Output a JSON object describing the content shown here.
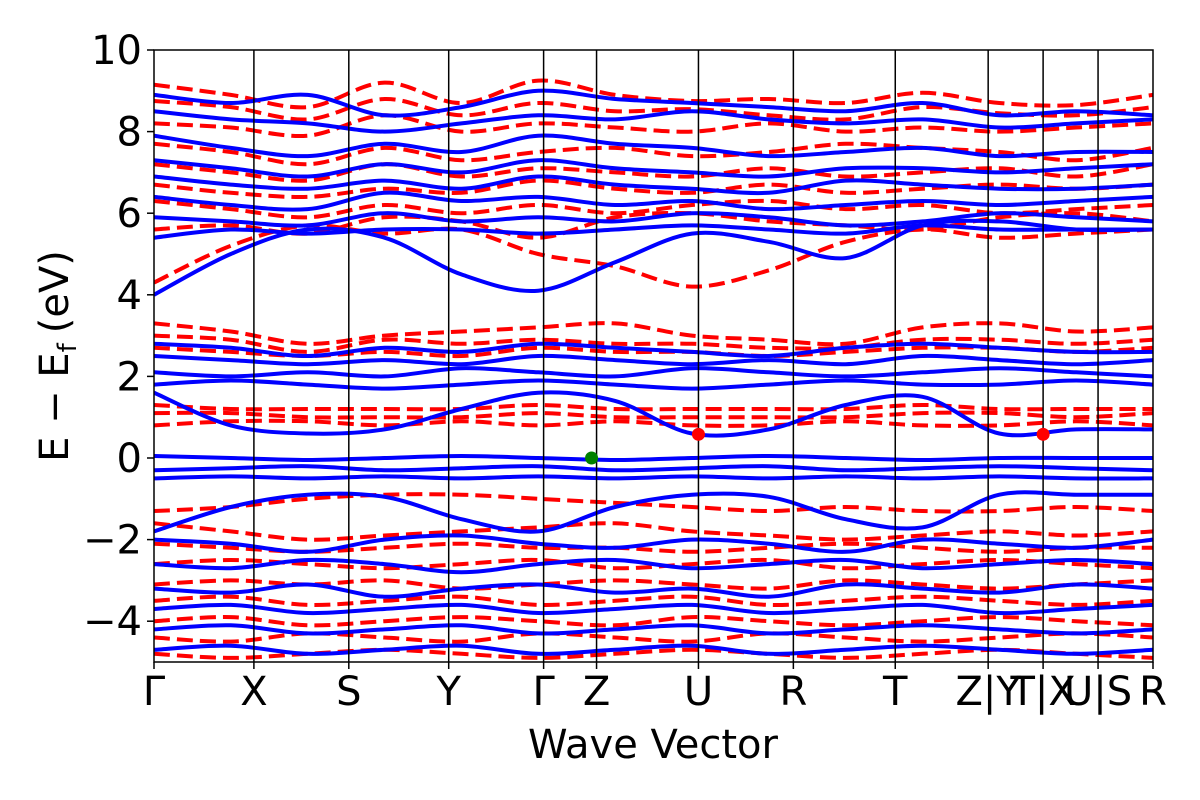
{
  "chart_data": {
    "type": "line",
    "title": "",
    "xlabel": "Wave Vector",
    "ylabel_main": "E − E",
    "ylabel_sub": "f",
    "ylabel_unit": "(eV)",
    "ylim": [
      -5,
      10
    ],
    "yticks": [
      -4,
      -2,
      0,
      2,
      4,
      6,
      8,
      10
    ],
    "ytick_labels": [
      "−4",
      "−2",
      "0",
      "2",
      "4",
      "6",
      "8",
      "10"
    ],
    "xlim": [
      0,
      10
    ],
    "kpoints": [
      {
        "label": "Γ",
        "x": 0.0
      },
      {
        "label": "X",
        "x": 1.0
      },
      {
        "label": "S",
        "x": 1.95
      },
      {
        "label": "Y",
        "x": 2.95
      },
      {
        "label": "Γ",
        "x": 3.9
      },
      {
        "label": "Z",
        "x": 4.43
      },
      {
        "label": "U",
        "x": 5.45
      },
      {
        "label": "R",
        "x": 6.4
      },
      {
        "label": "T",
        "x": 7.42
      },
      {
        "label": "Z|Y",
        "x": 8.35
      },
      {
        "label": "T|X",
        "x": 8.9
      },
      {
        "label": "U|S",
        "x": 9.45
      },
      {
        "label": "R",
        "x": 10.0
      }
    ],
    "grid": false,
    "legend": "none",
    "series": [
      {
        "style": "dashed",
        "color": "#ff0000"
      },
      {
        "style": "solid",
        "color": "#0000ff"
      }
    ],
    "markers": [
      {
        "x": 4.38,
        "y": 0.0,
        "color": "#008000"
      },
      {
        "x": 5.45,
        "y": 0.58,
        "color": "#ff0000"
      },
      {
        "x": 8.9,
        "y": 0.58,
        "color": "#ff0000"
      }
    ],
    "dashed_bands": [
      [
        9.15,
        8.9,
        8.6,
        9.2,
        8.7,
        9.25,
        8.9,
        8.75,
        8.8,
        8.7,
        8.95,
        8.7,
        8.65,
        8.9
      ],
      [
        8.75,
        8.6,
        8.3,
        8.8,
        8.4,
        8.7,
        8.5,
        8.55,
        8.4,
        8.3,
        8.6,
        8.45,
        8.4,
        8.6
      ],
      [
        8.2,
        8.1,
        7.9,
        8.4,
        8.0,
        8.2,
        8.1,
        8.0,
        8.2,
        8.0,
        8.1,
        8.0,
        8.1,
        8.2
      ],
      [
        7.7,
        7.5,
        7.2,
        7.6,
        7.3,
        7.5,
        7.6,
        7.4,
        7.5,
        7.7,
        7.6,
        7.5,
        7.3,
        7.6
      ],
      [
        7.2,
        7.0,
        6.8,
        7.2,
        6.9,
        7.1,
        7.0,
        6.9,
        7.1,
        6.9,
        7.0,
        7.1,
        6.9,
        7.2
      ],
      [
        6.7,
        6.5,
        6.4,
        6.6,
        6.5,
        6.8,
        6.6,
        6.5,
        6.7,
        6.5,
        6.6,
        6.7,
        6.6,
        6.7
      ],
      [
        6.3,
        6.1,
        5.9,
        6.2,
        6.0,
        6.2,
        6.0,
        6.2,
        6.3,
        6.1,
        6.2,
        6.0,
        6.1,
        6.2
      ],
      [
        5.6,
        5.7,
        5.5,
        5.9,
        5.8,
        5.4,
        5.9,
        6.0,
        5.8,
        5.7,
        5.6,
        5.9,
        6.0,
        5.8
      ],
      [
        4.3,
        5.2,
        5.7,
        5.5,
        5.6,
        5.0,
        4.7,
        4.2,
        4.6,
        5.3,
        5.6,
        5.4,
        5.5,
        5.6
      ],
      [
        3.3,
        3.1,
        2.8,
        3.0,
        3.1,
        3.2,
        3.3,
        3.0,
        2.9,
        2.8,
        3.2,
        3.3,
        3.1,
        3.2
      ],
      [
        3.0,
        2.9,
        2.6,
        2.9,
        2.8,
        2.9,
        2.8,
        2.8,
        2.7,
        2.7,
        2.9,
        2.9,
        2.8,
        2.9
      ],
      [
        2.7,
        2.6,
        2.5,
        2.6,
        2.5,
        2.7,
        2.6,
        2.6,
        2.5,
        2.6,
        2.7,
        2.7,
        2.6,
        2.7
      ],
      [
        1.3,
        1.2,
        1.2,
        1.2,
        1.2,
        1.3,
        1.2,
        1.2,
        1.2,
        1.2,
        1.3,
        1.2,
        1.2,
        1.2
      ],
      [
        1.1,
        1.1,
        1.0,
        1.0,
        1.0,
        1.1,
        1.0,
        1.0,
        1.0,
        1.0,
        1.1,
        1.1,
        1.0,
        1.1
      ],
      [
        0.8,
        0.9,
        0.9,
        0.8,
        0.9,
        0.8,
        0.9,
        0.8,
        0.8,
        0.9,
        0.8,
        0.8,
        0.9,
        0.8
      ],
      [
        -1.3,
        -1.2,
        -1.0,
        -0.9,
        -0.9,
        -1.0,
        -1.1,
        -1.2,
        -1.3,
        -1.2,
        -1.3,
        -1.3,
        -1.2,
        -1.3
      ],
      [
        -1.6,
        -1.8,
        -2.0,
        -1.9,
        -1.8,
        -1.7,
        -1.6,
        -1.8,
        -1.9,
        -2.0,
        -1.9,
        -1.8,
        -1.9,
        -1.8
      ],
      [
        -2.1,
        -2.2,
        -2.3,
        -2.2,
        -2.1,
        -2.2,
        -2.2,
        -2.3,
        -2.2,
        -2.1,
        -2.2,
        -2.3,
        -2.2,
        -2.2
      ],
      [
        -2.6,
        -2.5,
        -2.6,
        -2.7,
        -2.6,
        -2.5,
        -2.7,
        -2.6,
        -2.5,
        -2.7,
        -2.6,
        -2.5,
        -2.6,
        -2.7
      ],
      [
        -3.1,
        -3.0,
        -3.1,
        -3.0,
        -3.2,
        -3.1,
        -3.0,
        -3.1,
        -3.2,
        -3.0,
        -3.1,
        -3.2,
        -3.1,
        -3.0
      ],
      [
        -3.5,
        -3.4,
        -3.6,
        -3.5,
        -3.4,
        -3.6,
        -3.5,
        -3.4,
        -3.6,
        -3.5,
        -3.4,
        -3.5,
        -3.6,
        -3.5
      ],
      [
        -4.0,
        -3.9,
        -4.1,
        -4.0,
        -3.9,
        -4.0,
        -4.1,
        -3.9,
        -4.0,
        -4.1,
        -4.0,
        -3.9,
        -4.0,
        -4.1
      ],
      [
        -4.4,
        -4.5,
        -4.3,
        -4.4,
        -4.5,
        -4.3,
        -4.4,
        -4.5,
        -4.3,
        -4.4,
        -4.5,
        -4.4,
        -4.3,
        -4.4
      ],
      [
        -4.8,
        -4.9,
        -4.8,
        -4.7,
        -4.8,
        -4.9,
        -4.8,
        -4.7,
        -4.8,
        -4.9,
        -4.8,
        -4.7,
        -4.8,
        -4.9
      ]
    ],
    "solid_bands": [
      [
        8.9,
        8.7,
        8.9,
        8.4,
        8.6,
        9.0,
        8.8,
        8.7,
        8.6,
        8.5,
        8.7,
        8.4,
        8.5,
        8.4
      ],
      [
        8.5,
        8.3,
        8.2,
        8.0,
        8.2,
        8.4,
        8.3,
        8.5,
        8.3,
        8.2,
        8.3,
        8.1,
        8.2,
        8.3
      ],
      [
        7.9,
        7.6,
        7.4,
        7.7,
        7.5,
        7.9,
        7.7,
        7.6,
        7.4,
        7.5,
        7.6,
        7.4,
        7.5,
        7.5
      ],
      [
        7.3,
        7.1,
        6.9,
        7.2,
        7.0,
        7.3,
        7.1,
        7.0,
        6.9,
        7.1,
        7.1,
        7.0,
        7.1,
        7.2
      ],
      [
        6.9,
        6.7,
        6.6,
        6.8,
        6.6,
        6.9,
        6.7,
        6.6,
        6.5,
        6.8,
        6.7,
        6.6,
        6.6,
        6.7
      ],
      [
        6.4,
        6.2,
        6.1,
        6.5,
        6.3,
        6.4,
        6.2,
        6.3,
        6.1,
        6.2,
        6.3,
        6.2,
        6.3,
        6.4
      ],
      [
        5.9,
        5.8,
        5.7,
        6.0,
        5.8,
        5.9,
        5.8,
        6.0,
        5.9,
        5.7,
        5.8,
        6.0,
        5.9,
        5.8
      ],
      [
        5.4,
        5.6,
        5.5,
        5.6,
        5.6,
        5.5,
        5.6,
        5.7,
        5.6,
        5.5,
        5.7,
        5.6,
        5.6,
        5.6
      ],
      [
        4.0,
        5.0,
        5.6,
        5.4,
        4.5,
        4.1,
        4.8,
        5.5,
        5.3,
        4.9,
        5.7,
        5.8,
        5.6,
        5.6
      ],
      [
        2.8,
        2.7,
        2.5,
        2.7,
        2.6,
        2.8,
        2.7,
        2.6,
        2.5,
        2.7,
        2.8,
        2.7,
        2.6,
        2.6
      ],
      [
        2.5,
        2.4,
        2.3,
        2.4,
        2.3,
        2.5,
        2.4,
        2.3,
        2.4,
        2.3,
        2.5,
        2.4,
        2.3,
        2.4
      ],
      [
        2.1,
        2.0,
        2.1,
        2.0,
        2.2,
        2.1,
        2.0,
        2.2,
        2.1,
        2.0,
        2.1,
        2.2,
        2.1,
        2.0
      ],
      [
        1.8,
        1.9,
        1.8,
        1.7,
        1.8,
        1.9,
        1.8,
        1.7,
        1.8,
        1.9,
        1.8,
        1.8,
        1.9,
        1.8
      ],
      [
        1.6,
        0.8,
        0.6,
        0.7,
        1.2,
        1.6,
        1.4,
        0.6,
        0.7,
        1.3,
        1.5,
        0.6,
        0.7,
        0.7
      ],
      [
        0.05,
        0.0,
        -0.05,
        0.0,
        0.05,
        0.0,
        -0.05,
        0.0,
        0.05,
        0.0,
        -0.05,
        0.0,
        0.0,
        0.0
      ],
      [
        -0.3,
        -0.25,
        -0.2,
        -0.3,
        -0.25,
        -0.2,
        -0.3,
        -0.25,
        -0.2,
        -0.3,
        -0.25,
        -0.2,
        -0.25,
        -0.3
      ],
      [
        -0.5,
        -0.45,
        -0.5,
        -0.45,
        -0.5,
        -0.45,
        -0.5,
        -0.45,
        -0.5,
        -0.45,
        -0.5,
        -0.45,
        -0.5,
        -0.5
      ],
      [
        -1.8,
        -1.2,
        -0.9,
        -0.95,
        -1.5,
        -1.8,
        -1.2,
        -0.9,
        -0.95,
        -1.5,
        -1.7,
        -0.9,
        -0.9,
        -0.9
      ],
      [
        -2.0,
        -2.1,
        -2.3,
        -2.0,
        -1.9,
        -2.1,
        -2.2,
        -2.0,
        -2.1,
        -2.3,
        -2.0,
        -2.1,
        -2.2,
        -2.0
      ],
      [
        -2.6,
        -2.7,
        -2.5,
        -2.6,
        -2.8,
        -2.6,
        -2.5,
        -2.7,
        -2.6,
        -2.5,
        -2.7,
        -2.6,
        -2.5,
        -2.6
      ],
      [
        -3.2,
        -3.3,
        -3.1,
        -3.4,
        -3.2,
        -3.1,
        -3.3,
        -3.2,
        -3.4,
        -3.1,
        -3.2,
        -3.3,
        -3.1,
        -3.2
      ],
      [
        -3.7,
        -3.6,
        -3.8,
        -3.7,
        -3.6,
        -3.8,
        -3.7,
        -3.6,
        -3.8,
        -3.7,
        -3.6,
        -3.8,
        -3.7,
        -3.6
      ],
      [
        -4.2,
        -4.1,
        -4.3,
        -4.2,
        -4.1,
        -4.3,
        -4.2,
        -4.1,
        -4.3,
        -4.2,
        -4.1,
        -4.2,
        -4.3,
        -4.2
      ],
      [
        -4.7,
        -4.6,
        -4.8,
        -4.7,
        -4.6,
        -4.8,
        -4.7,
        -4.6,
        -4.8,
        -4.7,
        -4.6,
        -4.7,
        -4.8,
        -4.7
      ]
    ]
  }
}
